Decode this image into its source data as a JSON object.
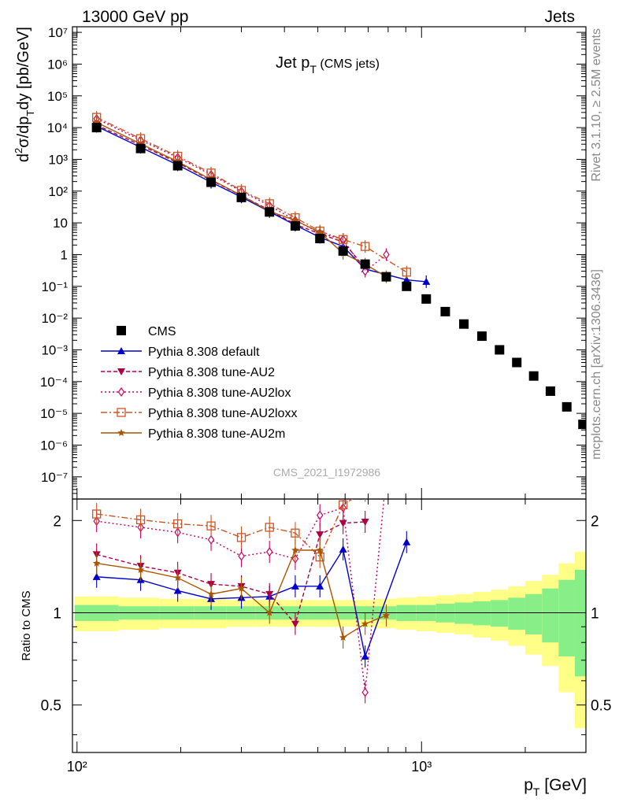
{
  "header": {
    "left": "13000 GeV pp",
    "right": "Jets"
  },
  "side_text": {
    "top": "Rivet 3.1.10, ≥ 2.5M events",
    "bottom": "mcplots.cern.ch [arXiv:1306.3436]"
  },
  "watermark": "CMS_2021_I1972986",
  "chart_data": {
    "type": "line",
    "title": "Jet pT (CMS jets)",
    "ylabel_main": "d²σ/dpTdy [pb/GeV]",
    "ylabel_ratio": "Ratio to CMS",
    "xlabel": "pT [GeV]",
    "xscale": "log",
    "yscale": "log",
    "xlim": [
      97,
      3000
    ],
    "ylim": [
      2e-08,
      15000000.0
    ],
    "ratio_ylim": [
      0.35,
      2.35
    ],
    "x_ticklabels": [
      "10²",
      "10³"
    ],
    "y_ticklabels": [
      "10⁻⁷",
      "10⁻⁶",
      "10⁻⁵",
      "10⁻⁴",
      "10⁻³",
      "10⁻²",
      "10⁻¹",
      "1",
      "10",
      "10²",
      "10³",
      "10⁴",
      "10⁵",
      "10⁶",
      "10⁷"
    ],
    "ratio_ticklabels": [
      "0.5",
      "1",
      "2"
    ],
    "legend_position": "center-left",
    "data": {
      "name": "CMS",
      "x": [
        114,
        153,
        196,
        245,
        300,
        362,
        430,
        507,
        592,
        686,
        790,
        905,
        1032,
        1172,
        1327,
        1497,
        1684,
        1890,
        2116,
        2366,
        2640,
        2941
      ],
      "y": [
        10000.0,
        2200.0,
        630.0,
        190.0,
        63.0,
        22.0,
        8.0,
        3.2,
        1.3,
        0.5,
        0.2,
        0.1,
        0.04,
        0.016,
        0.0065,
        0.0027,
        0.001,
        0.0004,
        0.00015,
        5e-05,
        1.6e-05,
        4.5e-06
      ]
    },
    "series": [
      {
        "name": "Pythia 8.308 default",
        "color": "#0000cc",
        "dash": "",
        "marker": "triangle-up",
        "x": [
          114,
          153,
          196,
          245,
          300,
          362,
          430,
          507,
          592,
          686,
          905,
          1032
        ],
        "y": [
          11000.0,
          2400.0,
          670.0,
          190.0,
          65.0,
          22.5,
          8.5,
          3.5,
          1.8,
          0.35,
          0.16,
          0.14
        ],
        "ratio": [
          1.31,
          1.28,
          1.18,
          1.11,
          1.12,
          1.13,
          1.22,
          1.22,
          1.61,
          0.72,
          1.7,
          null
        ]
      },
      {
        "name": "Pythia 8.308 tune-AU2",
        "color": "#aa0044",
        "dash": "5,3",
        "marker": "triangle-down",
        "x": [
          114,
          153,
          196,
          245,
          300,
          362,
          430,
          507,
          592,
          686
        ],
        "y": [
          12000.0,
          2800.0,
          780.0,
          220.0,
          72.0,
          25.0,
          9.0,
          4.5,
          2.5,
          0.38
        ],
        "ratio": [
          1.55,
          1.42,
          1.35,
          1.24,
          1.22,
          1.15,
          0.92,
          1.8,
          1.96,
          1.98
        ]
      },
      {
        "name": "Pythia 8.308 tune-AU2lox",
        "color": "#cc0066",
        "dash": "2,3",
        "marker": "diamond",
        "x": [
          114,
          153,
          196,
          245,
          300,
          362,
          430,
          507,
          592,
          686,
          790
        ],
        "y": [
          19000.0,
          4000.0,
          1150.0,
          330.0,
          98.0,
          35.0,
          12.0,
          4.8,
          3.0,
          0.3,
          1.0
        ],
        "ratio": [
          1.99,
          1.9,
          1.83,
          1.73,
          1.53,
          1.58,
          1.5,
          2.08,
          2.2,
          0.55,
          2.8
        ]
      },
      {
        "name": "Pythia 8.308 tune-AU2loxx",
        "color": "#cc5522",
        "dash": "8,3,2,3",
        "marker": "square-open",
        "x": [
          114,
          153,
          196,
          245,
          300,
          362,
          430,
          507,
          592,
          686,
          905
        ],
        "y": [
          21000.0,
          4500.0,
          1250.0,
          370.0,
          105.0,
          40.0,
          14.5,
          5.5,
          3.0,
          1.8,
          0.28
        ],
        "ratio": [
          2.1,
          2.01,
          1.95,
          1.92,
          1.76,
          1.9,
          1.82,
          1.52,
          2.25,
          2.5,
          2.8
        ]
      },
      {
        "name": "Pythia 8.308 tune-AU2m",
        "color": "#aa5500",
        "dash": "",
        "marker": "star",
        "x": [
          114,
          153,
          196,
          245,
          300,
          362,
          430,
          507,
          592,
          686,
          790
        ],
        "y": [
          14500.0,
          3100.0,
          850.0,
          230.0,
          73.0,
          23.0,
          12.0,
          5.0,
          1.1,
          0.5,
          0.2
        ],
        "ratio": [
          1.45,
          1.38,
          1.3,
          1.15,
          1.2,
          1.0,
          1.6,
          1.6,
          0.83,
          0.92,
          0.98
        ]
      }
    ]
  }
}
